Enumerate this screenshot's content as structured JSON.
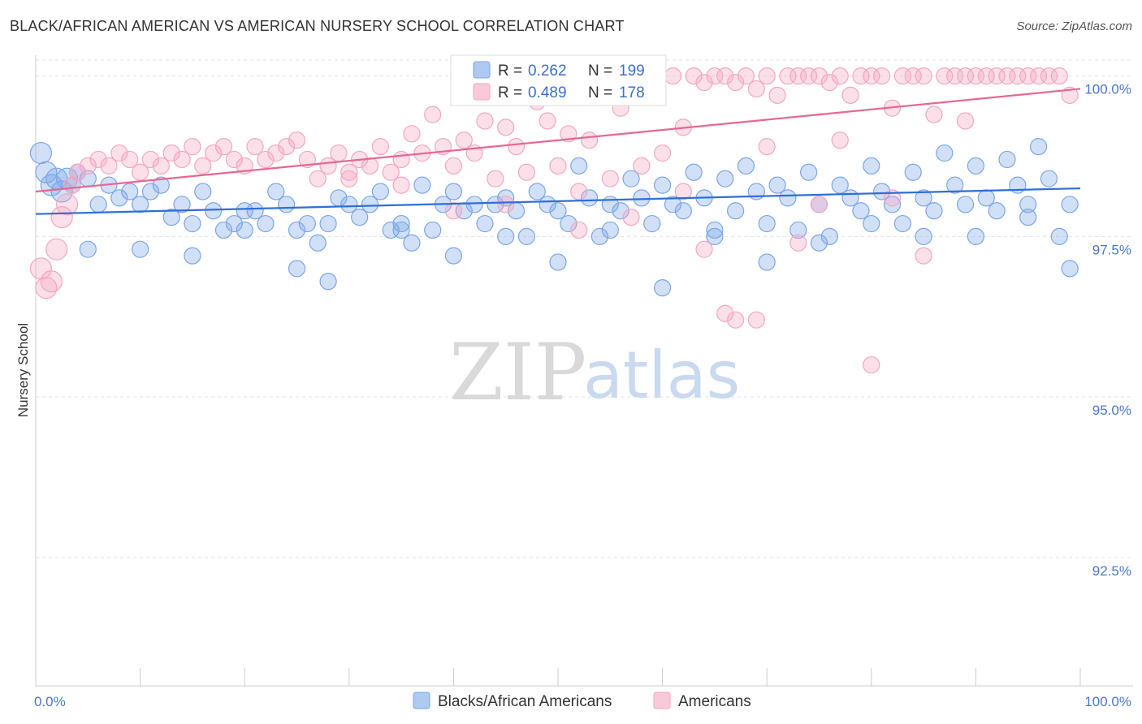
{
  "title": "BLACK/AFRICAN AMERICAN VS AMERICAN NURSERY SCHOOL CORRELATION CHART",
  "source": "Source: ZipAtlas.com",
  "watermark": {
    "zip": "ZIP",
    "atlas": "atlas"
  },
  "chart_data": {
    "type": "scatter",
    "xlabel": "",
    "ylabel": "Nursery School",
    "xlim": [
      0,
      100
    ],
    "ylim": [
      90.5,
      100.4
    ],
    "x_tick_labels": [
      "0.0%",
      "100.0%"
    ],
    "y_ticks": [
      {
        "value": 100.0,
        "label": "100.0%"
      },
      {
        "value": 97.5,
        "label": "97.5%"
      },
      {
        "value": 95.0,
        "label": "95.0%"
      },
      {
        "value": 92.5,
        "label": "92.5%"
      }
    ],
    "grid": true,
    "legend_position": "top-center",
    "series": [
      {
        "name": "Blacks/African Americans",
        "color": "#7aa6e8",
        "line_color": "#2f6fd6",
        "R": "0.262",
        "N": "199",
        "trend": [
          [
            0,
            97.85
          ],
          [
            100,
            98.25
          ]
        ],
        "points": [
          [
            0.5,
            98.8
          ],
          [
            1,
            98.5
          ],
          [
            1.5,
            98.3
          ],
          [
            2,
            98.4
          ],
          [
            2.5,
            98.2
          ],
          [
            3,
            98.4
          ],
          [
            3.5,
            98.3
          ],
          [
            4,
            98.5
          ],
          [
            5,
            98.4
          ],
          [
            6,
            98.0
          ],
          [
            7,
            98.3
          ],
          [
            8,
            98.1
          ],
          [
            9,
            98.2
          ],
          [
            10,
            98.0
          ],
          [
            11,
            98.2
          ],
          [
            12,
            98.3
          ],
          [
            13,
            97.8
          ],
          [
            14,
            98.0
          ],
          [
            15,
            97.7
          ],
          [
            16,
            98.2
          ],
          [
            17,
            97.9
          ],
          [
            18,
            97.6
          ],
          [
            19,
            97.7
          ],
          [
            20,
            97.6
          ],
          [
            21,
            97.9
          ],
          [
            22,
            97.7
          ],
          [
            23,
            98.2
          ],
          [
            24,
            98.0
          ],
          [
            25,
            97.6
          ],
          [
            26,
            97.7
          ],
          [
            27,
            97.4
          ],
          [
            28,
            97.7
          ],
          [
            29,
            98.1
          ],
          [
            30,
            98.0
          ],
          [
            31,
            97.8
          ],
          [
            32,
            98.0
          ],
          [
            33,
            98.2
          ],
          [
            34,
            97.6
          ],
          [
            35,
            97.7
          ],
          [
            36,
            97.4
          ],
          [
            37,
            98.3
          ],
          [
            38,
            97.6
          ],
          [
            39,
            98.0
          ],
          [
            40,
            98.2
          ],
          [
            41,
            97.9
          ],
          [
            42,
            98.0
          ],
          [
            43,
            97.7
          ],
          [
            44,
            98.0
          ],
          [
            45,
            98.1
          ],
          [
            46,
            97.9
          ],
          [
            47,
            97.5
          ],
          [
            48,
            98.2
          ],
          [
            49,
            98.0
          ],
          [
            50,
            97.9
          ],
          [
            51,
            97.7
          ],
          [
            52,
            98.6
          ],
          [
            53,
            98.1
          ],
          [
            54,
            97.5
          ],
          [
            55,
            98.0
          ],
          [
            56,
            97.9
          ],
          [
            57,
            98.4
          ],
          [
            58,
            98.1
          ],
          [
            59,
            97.7
          ],
          [
            60,
            98.3
          ],
          [
            61,
            98.0
          ],
          [
            62,
            97.9
          ],
          [
            63,
            98.5
          ],
          [
            64,
            98.1
          ],
          [
            65,
            97.6
          ],
          [
            66,
            98.4
          ],
          [
            67,
            97.9
          ],
          [
            68,
            98.6
          ],
          [
            69,
            98.2
          ],
          [
            70,
            97.7
          ],
          [
            71,
            98.3
          ],
          [
            72,
            98.1
          ],
          [
            73,
            97.6
          ],
          [
            74,
            98.5
          ],
          [
            75,
            98.0
          ],
          [
            76,
            97.5
          ],
          [
            77,
            98.3
          ],
          [
            78,
            98.1
          ],
          [
            79,
            97.9
          ],
          [
            80,
            98.6
          ],
          [
            81,
            98.2
          ],
          [
            82,
            98.0
          ],
          [
            83,
            97.7
          ],
          [
            84,
            98.5
          ],
          [
            85,
            98.1
          ],
          [
            86,
            97.9
          ],
          [
            87,
            98.8
          ],
          [
            88,
            98.3
          ],
          [
            89,
            98.0
          ],
          [
            90,
            98.6
          ],
          [
            91,
            98.1
          ],
          [
            92,
            97.9
          ],
          [
            93,
            98.7
          ],
          [
            94,
            98.3
          ],
          [
            95,
            98.0
          ],
          [
            96,
            98.9
          ],
          [
            97,
            98.4
          ],
          [
            98,
            97.5
          ],
          [
            99,
            98.0
          ],
          [
            5,
            97.3
          ],
          [
            10,
            97.3
          ],
          [
            15,
            97.2
          ],
          [
            25,
            97.0
          ],
          [
            28,
            96.8
          ],
          [
            40,
            97.2
          ],
          [
            45,
            97.5
          ],
          [
            50,
            97.1
          ],
          [
            60,
            96.7
          ],
          [
            65,
            97.5
          ],
          [
            70,
            97.1
          ],
          [
            80,
            97.7
          ],
          [
            90,
            97.5
          ],
          [
            95,
            97.8
          ],
          [
            99,
            97.0
          ],
          [
            85,
            97.5
          ],
          [
            75,
            97.4
          ],
          [
            55,
            97.6
          ],
          [
            35,
            97.6
          ],
          [
            20,
            97.9
          ]
        ]
      },
      {
        "name": "Americans",
        "color": "#f4a6c0",
        "line_color": "#e8678f",
        "R": "0.489",
        "N": "178",
        "trend": [
          [
            0,
            98.2
          ],
          [
            100,
            99.8
          ]
        ],
        "points": [
          [
            0.5,
            97.0
          ],
          [
            1,
            96.7
          ],
          [
            1.5,
            96.8
          ],
          [
            2,
            97.3
          ],
          [
            2.5,
            97.8
          ],
          [
            3,
            98.0
          ],
          [
            3.5,
            98.3
          ],
          [
            4,
            98.5
          ],
          [
            5,
            98.6
          ],
          [
            6,
            98.7
          ],
          [
            7,
            98.6
          ],
          [
            8,
            98.8
          ],
          [
            9,
            98.7
          ],
          [
            10,
            98.5
          ],
          [
            11,
            98.7
          ],
          [
            12,
            98.6
          ],
          [
            13,
            98.8
          ],
          [
            14,
            98.7
          ],
          [
            15,
            98.9
          ],
          [
            16,
            98.6
          ],
          [
            17,
            98.8
          ],
          [
            18,
            98.9
          ],
          [
            19,
            98.7
          ],
          [
            20,
            98.6
          ],
          [
            21,
            98.9
          ],
          [
            22,
            98.7
          ],
          [
            23,
            98.8
          ],
          [
            24,
            98.9
          ],
          [
            25,
            99.0
          ],
          [
            26,
            98.7
          ],
          [
            27,
            98.4
          ],
          [
            28,
            98.6
          ],
          [
            29,
            98.8
          ],
          [
            30,
            98.5
          ],
          [
            31,
            98.7
          ],
          [
            32,
            98.6
          ],
          [
            33,
            98.9
          ],
          [
            34,
            98.5
          ],
          [
            35,
            98.7
          ],
          [
            36,
            99.1
          ],
          [
            37,
            98.8
          ],
          [
            38,
            99.4
          ],
          [
            39,
            98.9
          ],
          [
            40,
            98.6
          ],
          [
            41,
            99.0
          ],
          [
            42,
            98.8
          ],
          [
            43,
            99.3
          ],
          [
            44,
            98.4
          ],
          [
            45,
            99.2
          ],
          [
            46,
            98.9
          ],
          [
            47,
            98.5
          ],
          [
            48,
            99.6
          ],
          [
            49,
            99.3
          ],
          [
            50,
            98.6
          ],
          [
            51,
            99.1
          ],
          [
            52,
            98.2
          ],
          [
            53,
            99.0
          ],
          [
            54,
            99.7
          ],
          [
            55,
            98.4
          ],
          [
            56,
            99.5
          ],
          [
            57,
            100.0
          ],
          [
            58,
            98.6
          ],
          [
            59,
            99.8
          ],
          [
            60,
            98.8
          ],
          [
            61,
            100.0
          ],
          [
            62,
            99.2
          ],
          [
            63,
            100.0
          ],
          [
            64,
            99.9
          ],
          [
            65,
            100.0
          ],
          [
            66,
            100.0
          ],
          [
            67,
            99.9
          ],
          [
            68,
            100.0
          ],
          [
            69,
            99.8
          ],
          [
            70,
            100.0
          ],
          [
            71,
            99.7
          ],
          [
            72,
            100.0
          ],
          [
            73,
            100.0
          ],
          [
            74,
            100.0
          ],
          [
            75,
            100.0
          ],
          [
            76,
            99.9
          ],
          [
            77,
            100.0
          ],
          [
            78,
            99.7
          ],
          [
            79,
            100.0
          ],
          [
            80,
            100.0
          ],
          [
            81,
            100.0
          ],
          [
            82,
            99.5
          ],
          [
            83,
            100.0
          ],
          [
            84,
            100.0
          ],
          [
            85,
            100.0
          ],
          [
            86,
            99.4
          ],
          [
            87,
            100.0
          ],
          [
            88,
            100.0
          ],
          [
            89,
            100.0
          ],
          [
            90,
            100.0
          ],
          [
            91,
            100.0
          ],
          [
            92,
            100.0
          ],
          [
            93,
            100.0
          ],
          [
            94,
            100.0
          ],
          [
            95,
            100.0
          ],
          [
            96,
            100.0
          ],
          [
            97,
            100.0
          ],
          [
            98,
            100.0
          ],
          [
            99,
            99.7
          ],
          [
            66,
            96.3
          ],
          [
            67,
            96.2
          ],
          [
            69,
            96.2
          ],
          [
            80,
            95.5
          ],
          [
            85,
            97.2
          ],
          [
            73,
            97.4
          ],
          [
            64,
            97.3
          ],
          [
            52,
            97.6
          ],
          [
            45,
            98.0
          ],
          [
            40,
            97.9
          ],
          [
            35,
            98.3
          ],
          [
            30,
            98.4
          ],
          [
            57,
            97.8
          ],
          [
            62,
            98.2
          ],
          [
            70,
            98.9
          ],
          [
            77,
            99.0
          ],
          [
            89,
            99.3
          ],
          [
            82,
            98.1
          ],
          [
            75,
            98.0
          ]
        ]
      }
    ]
  }
}
